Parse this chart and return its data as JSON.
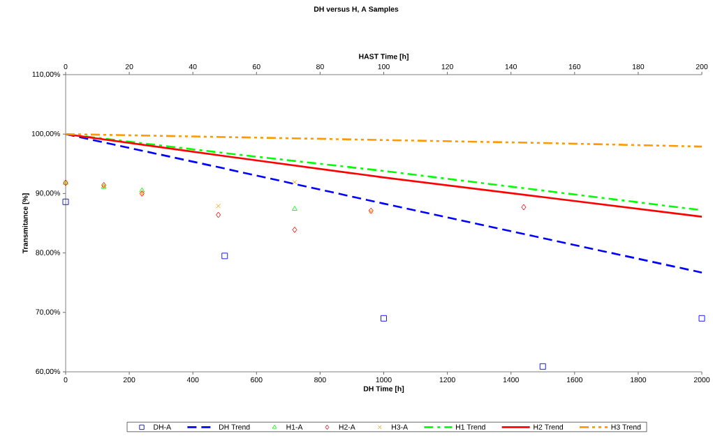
{
  "chart_data": {
    "type": "scatter",
    "title": "DH versus H, A Samples",
    "xlabel": "DH Time [h]",
    "x2label": "HAST Time [h]",
    "ylabel": "Transmitance [%]",
    "xlim": [
      0,
      2000
    ],
    "xticks": [
      0,
      200,
      400,
      600,
      800,
      1000,
      1200,
      1400,
      1600,
      1800,
      2000
    ],
    "x2lim": [
      0,
      200
    ],
    "x2ticks": [
      0,
      20,
      40,
      60,
      80,
      100,
      120,
      140,
      160,
      180,
      200
    ],
    "ylim": [
      60,
      110
    ],
    "yticks": [
      {
        "value": 60,
        "label": "60,00%"
      },
      {
        "value": 70,
        "label": "70,00%"
      },
      {
        "value": 80,
        "label": "80,00%"
      },
      {
        "value": 90,
        "label": "90,00%"
      },
      {
        "value": 100,
        "label": "100,00%"
      },
      {
        "value": 110,
        "label": "110,00%"
      }
    ],
    "legend": "bottom",
    "grid": false,
    "series": [
      {
        "name": "DH-A",
        "type": "scatter",
        "color": "#0000ff",
        "marker": "square",
        "x": [
          0,
          500,
          1000,
          1500,
          2000
        ],
        "values": [
          88.6,
          79.5,
          69.0,
          60.9,
          69.0
        ]
      },
      {
        "name": "DH Trend",
        "type": "line",
        "color": "#0000ff",
        "marker": "none",
        "line_style": "dashed",
        "x": [
          0,
          500,
          1000,
          1500,
          2000
        ],
        "values": [
          100,
          94.2,
          88.3,
          82.5,
          76.7
        ]
      },
      {
        "name": "H1-A",
        "type": "scatter",
        "color": "#00ff00",
        "marker": "triangle",
        "axis": "x2",
        "x": [
          0,
          12,
          24,
          72
        ],
        "values": [
          91.8,
          91.1,
          90.5,
          87.4
        ]
      },
      {
        "name": "H2-A",
        "type": "scatter",
        "color": "#ff0000",
        "marker": "diamond",
        "axis": "x2",
        "x": [
          0,
          12,
          24,
          48,
          72,
          96,
          144
        ],
        "values": [
          91.8,
          91.4,
          90.0,
          86.4,
          83.9,
          87.1,
          87.7
        ]
      },
      {
        "name": "H3-A",
        "type": "scatter",
        "color": "#ff9900",
        "marker": "cross",
        "axis": "x2",
        "x": [
          0,
          12,
          24,
          48,
          72,
          96
        ],
        "values": [
          91.8,
          91.2,
          90.0,
          87.9,
          91.9,
          87.0
        ]
      },
      {
        "name": "H1 Trend",
        "type": "line",
        "color": "#00ff00",
        "marker": "none",
        "line_style": "dashdot",
        "axis": "x2",
        "x": [
          0,
          50,
          100,
          150,
          200
        ],
        "values": [
          100,
          96.8,
          93.8,
          90.5,
          87.2
        ]
      },
      {
        "name": "H2 Trend",
        "type": "line",
        "color": "#ff0000",
        "marker": "none",
        "line_style": "solid",
        "axis": "x2",
        "x": [
          0,
          50,
          100,
          150,
          200
        ],
        "values": [
          100,
          96.3,
          92.7,
          89.4,
          86.1
        ]
      },
      {
        "name": "H3 Trend",
        "type": "line",
        "color": "#ff9900",
        "marker": "none",
        "line_style": "dashdotdot",
        "axis": "x2",
        "x": [
          0,
          50,
          100,
          150,
          200
        ],
        "values": [
          100,
          99.5,
          99.0,
          98.5,
          97.9
        ]
      }
    ]
  }
}
